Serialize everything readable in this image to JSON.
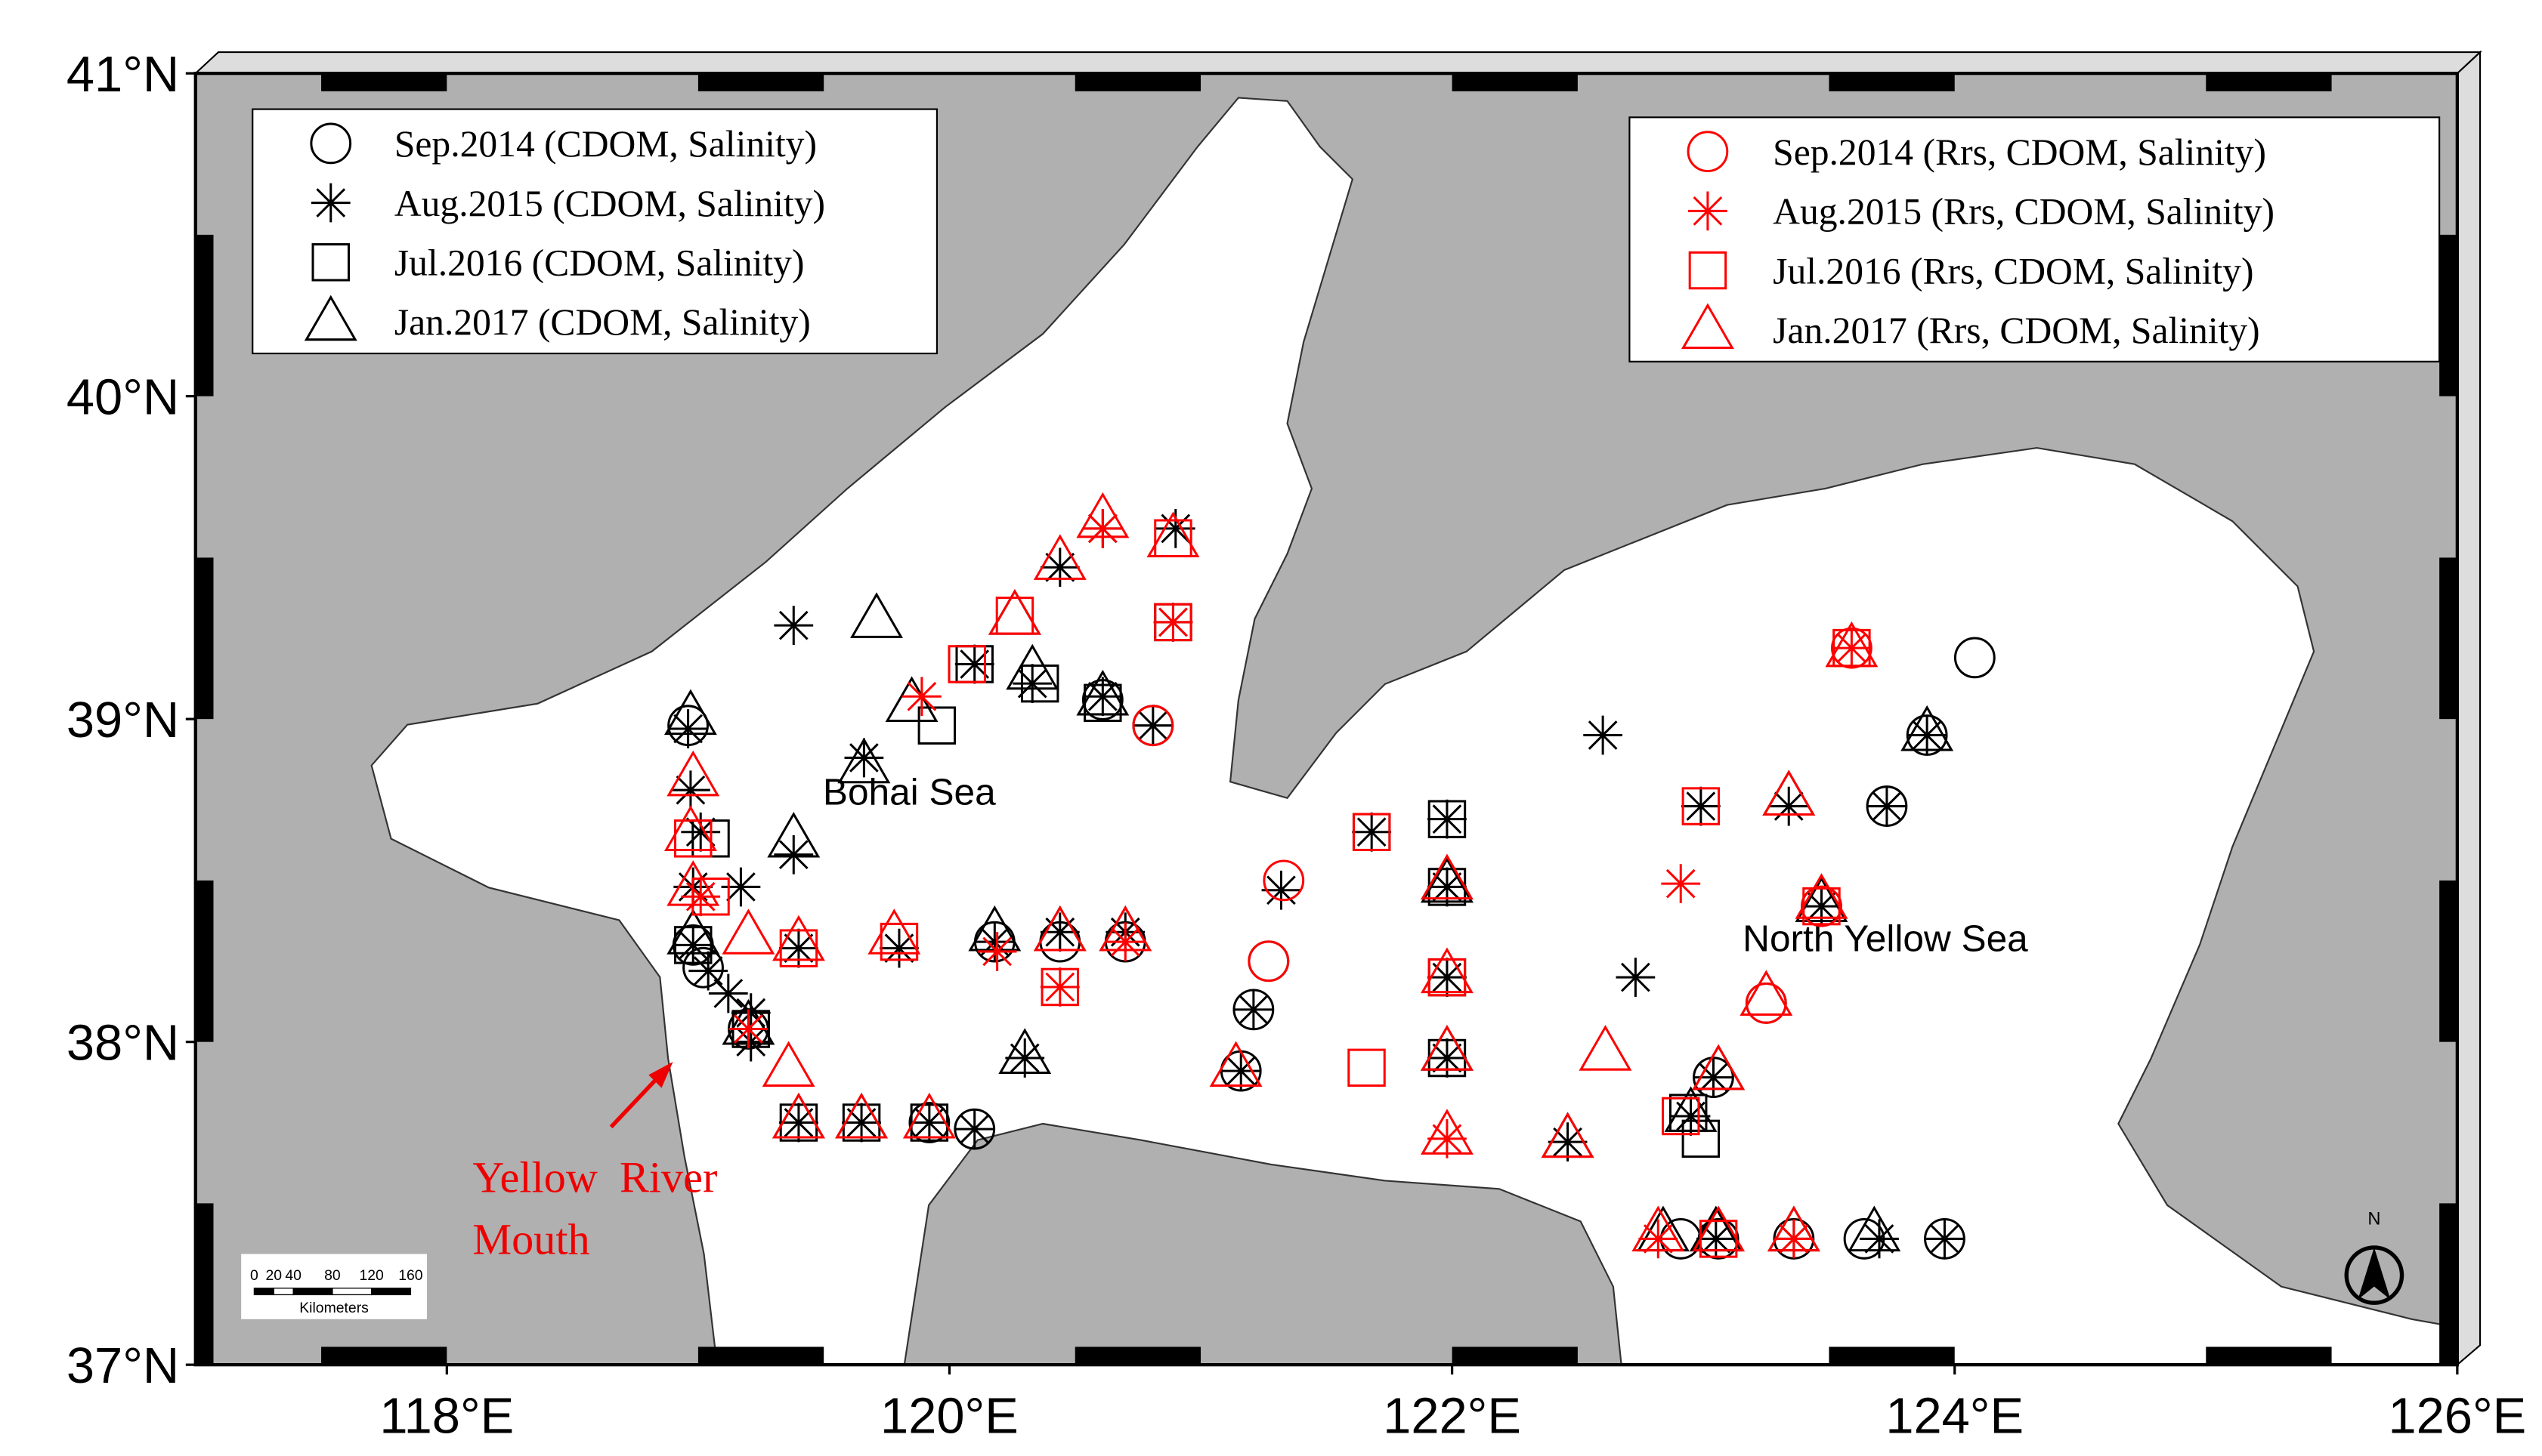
{
  "chart_data": {
    "type": "map",
    "xlim": [
      117,
      126
    ],
    "ylim": [
      37,
      41
    ],
    "xticks": [
      {
        "value": 118,
        "label": "118°E"
      },
      {
        "value": 120,
        "label": "120°E"
      },
      {
        "value": 122,
        "label": "122°E"
      },
      {
        "value": 124,
        "label": "124°E"
      },
      {
        "value": 126,
        "label": "126°E"
      }
    ],
    "yticks": [
      {
        "value": 37,
        "label": "37°N"
      },
      {
        "value": 38,
        "label": "38°N"
      },
      {
        "value": 39,
        "label": "39°N"
      },
      {
        "value": 40,
        "label": "40°N"
      },
      {
        "value": 41,
        "label": "41°N"
      }
    ],
    "regions": [
      "Bohai Sea",
      "North Yellow Sea"
    ],
    "annotation": [
      "Yellow  River",
      "Mouth"
    ],
    "scale_bar": {
      "labels": [
        0,
        20,
        40,
        80,
        120,
        160
      ],
      "unit": "Kilometers"
    },
    "north_arrow": "N",
    "series": [
      {
        "name": "Sep.2014 (CDOM, Salinity)",
        "color": "#000000",
        "marker": "circle",
        "legend": "upper left",
        "x": [
          118.96,
          118.98,
          119.02,
          119.2,
          120.1,
          119.92,
          124.08,
          123.89,
          123.73,
          123.47,
          123.25,
          123.04,
          122.91,
          123.06,
          123.36,
          123.64,
          123.96,
          121.21,
          121.16,
          121.27,
          120.81,
          120.61,
          120.18,
          120.44,
          120.7
        ],
        "y": [
          38.98,
          38.3,
          38.23,
          38.04,
          37.73,
          37.75,
          39.19,
          38.95,
          38.73,
          38.42,
          38.12,
          37.89,
          37.39,
          37.39,
          37.39,
          37.39,
          37.39,
          38.1,
          37.91,
          38.25,
          38.98,
          39.06,
          38.31,
          38.31,
          38.31
        ]
      },
      {
        "name": "Aug.2015 (CDOM, Salinity)",
        "color": "#000000",
        "marker": "star",
        "legend": "upper left",
        "x": [
          119.38,
          119.66,
          119.38,
          118.96,
          118.97,
          119.01,
          118.98,
          119.17,
          118.98,
          119.04,
          119.12,
          119.21,
          119.21,
          119.4,
          119.8,
          120.18,
          120.44,
          120.7,
          120.1,
          120.33,
          120.61,
          120.89,
          120.9,
          120.61,
          120.44,
          120.81,
          121.32,
          121.68,
          121.98,
          121.98,
          121.98,
          121.98,
          121.21,
          121.16,
          122.6,
          122.73,
          122.46,
          122.95,
          123.04,
          122.99,
          123.34,
          123.73,
          123.89,
          123.47,
          123.05,
          123.36,
          123.7,
          123.96,
          119.4,
          119.65,
          119.92,
          120.1,
          120.3
        ],
        "y": [
          39.29,
          38.88,
          38.58,
          38.97,
          38.78,
          38.65,
          38.48,
          38.48,
          38.3,
          38.22,
          38.15,
          38.09,
          38.0,
          38.29,
          38.29,
          38.31,
          38.34,
          38.34,
          39.17,
          39.11,
          39.07,
          39.3,
          39.59,
          39.59,
          39.47,
          38.98,
          38.47,
          38.65,
          38.69,
          38.48,
          38.2,
          37.95,
          38.1,
          37.91,
          38.95,
          38.2,
          37.69,
          37.77,
          37.89,
          38.73,
          38.73,
          38.73,
          38.95,
          38.42,
          37.39,
          37.39,
          37.39,
          37.39,
          37.75,
          37.75,
          37.75,
          37.73,
          37.95
        ]
      },
      {
        "name": "Jul.2016 (CDOM, Salinity)",
        "color": "#000000",
        "marker": "square",
        "legend": "upper left",
        "x": [
          119.05,
          119.95,
          120.36,
          120.61,
          122.99,
          121.68,
          121.98,
          121.98,
          121.98,
          121.98,
          122.94,
          120.89,
          120.1,
          119.4,
          119.65,
          119.92,
          119.21,
          118.98
        ],
        "y": [
          38.63,
          38.98,
          39.11,
          39.05,
          37.7,
          38.65,
          38.69,
          38.48,
          38.2,
          37.95,
          37.78,
          39.3,
          39.17,
          37.75,
          37.75,
          37.75,
          38.04,
          38.3
        ]
      },
      {
        "name": "Jan.2017 (CDOM, Salinity)",
        "color": "#000000",
        "marker": "triangle",
        "legend": "upper left",
        "x": [
          119.71,
          119.38,
          118.97,
          119.66,
          119.85,
          120.26,
          120.33,
          120.61,
          120.44,
          120.7,
          120.18,
          120.3,
          121.98,
          121.98,
          122.46,
          123.34,
          123.47,
          123.89,
          123.68,
          123.05,
          123.36,
          122.84,
          122.95,
          123.06,
          119.4,
          119.65,
          119.2,
          118.98
        ],
        "y": [
          39.31,
          38.63,
          39.01,
          38.86,
          39.05,
          39.32,
          39.15,
          39.07,
          38.34,
          38.34,
          38.34,
          37.96,
          38.49,
          37.97,
          37.7,
          38.76,
          38.43,
          38.96,
          37.41,
          37.41,
          37.41,
          37.41,
          37.78,
          37.91,
          37.76,
          37.76,
          38.05,
          38.33
        ]
      },
      {
        "name": "Sep.2014 (Rrs, CDOM, Salinity)",
        "color": "#ff0000",
        "marker": "circle",
        "legend": "upper right",
        "x": [
          123.59,
          121.33,
          121.27,
          123.25,
          123.47,
          120.81
        ],
        "y": [
          39.22,
          38.5,
          38.25,
          38.12,
          38.42,
          38.98
        ]
      },
      {
        "name": "Aug.2015 (Rrs, CDOM, Salinity)",
        "color": "#ff0000",
        "marker": "star",
        "legend": "upper right",
        "x": [
          119.89,
          120.19,
          122.91,
          123.59,
          122.82,
          123.36,
          120.44,
          120.7,
          120.89,
          120.61,
          119.2,
          119.01,
          121.98
        ],
        "y": [
          39.07,
          38.28,
          38.49,
          39.22,
          37.39,
          37.39,
          38.17,
          38.31,
          39.3,
          39.59,
          38.04,
          38.45,
          37.7
        ]
      },
      {
        "name": "Jul.2016 (Rrs, CDOM, Salinity)",
        "color": "#ff0000",
        "marker": "square",
        "legend": "upper right",
        "x": [
          120.89,
          120.89,
          120.07,
          120.26,
          120.44,
          121.68,
          121.66,
          121.98,
          122.99,
          122.91,
          123.06,
          119.4,
          119.8,
          118.98,
          119.05,
          123.59,
          123.47
        ],
        "y": [
          39.3,
          39.56,
          39.17,
          39.32,
          38.17,
          38.65,
          37.92,
          38.2,
          38.73,
          37.77,
          37.39,
          38.29,
          38.31,
          38.63,
          38.45,
          39.22,
          38.42
        ]
      },
      {
        "name": "Jan.2017 (Rrs, CDOM, Salinity)",
        "color": "#ff0000",
        "marker": "triangle",
        "legend": "upper right",
        "x": [
          120.44,
          120.61,
          120.89,
          120.26,
          123.59,
          123.34,
          123.47,
          123.25,
          122.61,
          122.46,
          123.06,
          122.82,
          123.06,
          123.36,
          121.98,
          121.98,
          121.98,
          121.98,
          121.14,
          119.2,
          119.4,
          119.78,
          120.44,
          120.7,
          118.98,
          118.97,
          118.98,
          119.36,
          119.4,
          119.65,
          119.92
        ],
        "y": [
          39.49,
          39.62,
          39.56,
          39.32,
          39.22,
          38.76,
          38.44,
          38.14,
          37.97,
          37.7,
          37.91,
          37.41,
          37.41,
          37.41,
          37.71,
          37.97,
          38.21,
          38.5,
          37.92,
          38.33,
          38.31,
          38.33,
          38.34,
          38.34,
          38.82,
          38.65,
          38.48,
          37.92,
          37.76,
          37.76,
          37.76
        ]
      }
    ]
  }
}
